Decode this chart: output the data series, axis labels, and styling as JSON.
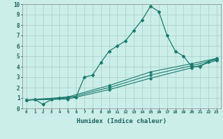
{
  "xlabel": "Humidex (Indice chaleur)",
  "ylabel": "",
  "xlim": [
    -0.5,
    23.5
  ],
  "ylim": [
    0,
    10
  ],
  "xticks": [
    0,
    1,
    2,
    3,
    4,
    5,
    6,
    7,
    8,
    9,
    10,
    11,
    12,
    13,
    14,
    15,
    16,
    17,
    18,
    19,
    20,
    21,
    22,
    23
  ],
  "yticks": [
    0,
    1,
    2,
    3,
    4,
    5,
    6,
    7,
    8,
    9,
    10
  ],
  "bg_color": "#cceee8",
  "grid_color": "#aad4cc",
  "line_color": "#1a7a6e",
  "series": [
    {
      "x": [
        0,
        1,
        2,
        3,
        4,
        5,
        6,
        7,
        8,
        9,
        10,
        11,
        12,
        13,
        14,
        15,
        16,
        17,
        18,
        19,
        20,
        21,
        22,
        23
      ],
      "y": [
        0.8,
        0.85,
        0.4,
        0.85,
        1.0,
        1.1,
        1.1,
        3.0,
        3.2,
        4.4,
        5.5,
        6.0,
        6.5,
        7.5,
        8.5,
        9.8,
        9.3,
        7.0,
        5.5,
        5.0,
        4.0,
        4.0,
        4.5,
        4.8
      ]
    },
    {
      "x": [
        0,
        5,
        10,
        15,
        20,
        23
      ],
      "y": [
        0.8,
        1.1,
        2.2,
        3.5,
        4.3,
        4.8
      ]
    },
    {
      "x": [
        0,
        5,
        10,
        15,
        20,
        23
      ],
      "y": [
        0.8,
        1.0,
        2.0,
        3.2,
        4.1,
        4.7
      ]
    },
    {
      "x": [
        0,
        5,
        10,
        15,
        20,
        23
      ],
      "y": [
        0.8,
        0.9,
        1.8,
        2.9,
        3.9,
        4.6
      ]
    }
  ]
}
